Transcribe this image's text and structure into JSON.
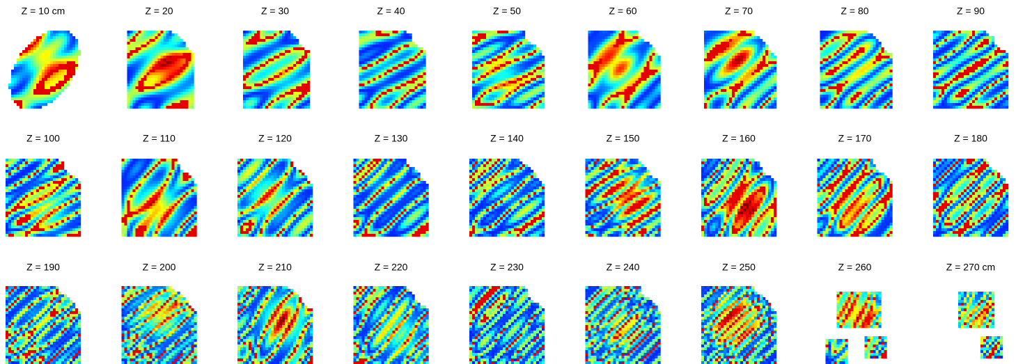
{
  "panels": [
    {
      "title": "Z = 10 cm"
    },
    {
      "title": "Z = 20"
    },
    {
      "title": "Z = 30"
    },
    {
      "title": "Z = 40"
    },
    {
      "title": "Z = 50"
    },
    {
      "title": "Z = 60"
    },
    {
      "title": "Z = 70"
    },
    {
      "title": "Z = 80"
    },
    {
      "title": "Z = 90"
    },
    {
      "title": "Z = 100"
    },
    {
      "title": "Z = 110"
    },
    {
      "title": "Z = 120"
    },
    {
      "title": "Z = 130"
    },
    {
      "title": "Z = 140"
    },
    {
      "title": "Z = 150"
    },
    {
      "title": "Z = 160"
    },
    {
      "title": "Z = 170"
    },
    {
      "title": "Z = 180"
    },
    {
      "title": "Z = 190"
    },
    {
      "title": "Z = 200"
    },
    {
      "title": "Z = 210"
    },
    {
      "title": "Z = 220"
    },
    {
      "title": "Z = 230"
    },
    {
      "title": "Z = 240"
    },
    {
      "title": "Z = 250"
    },
    {
      "title": "Z = 260"
    },
    {
      "title": "Z = 270 cm"
    }
  ]
}
